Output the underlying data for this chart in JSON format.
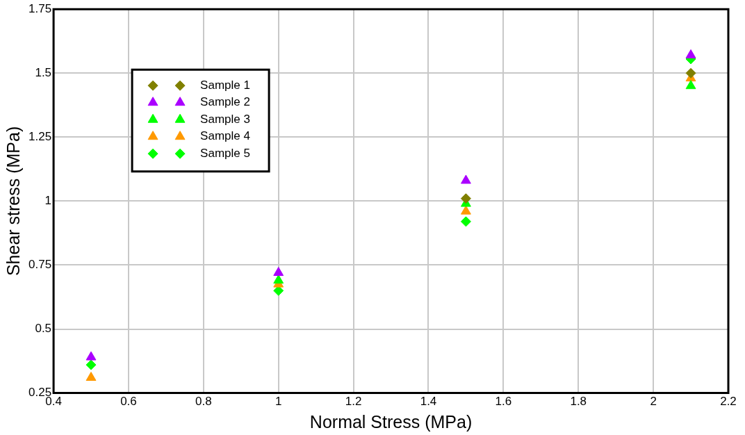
{
  "chart_data": {
    "type": "scatter",
    "xlabel": "Normal Stress (MPa)",
    "ylabel": "Shear stress (MPa)",
    "x": [
      0.5,
      1,
      1.5,
      2.1
    ],
    "series": [
      {
        "name": "Sample 1",
        "color": "#808000",
        "marker": "diamond",
        "values": [
          null,
          null,
          1.01,
          1.5
        ]
      },
      {
        "name": "Sample 2",
        "color": "#aa00ff",
        "marker": "triangle",
        "values": [
          0.39,
          0.72,
          1.08,
          1.57
        ]
      },
      {
        "name": "Sample 3",
        "color": "#00ff00",
        "marker": "triangle",
        "values": [
          null,
          0.69,
          0.99,
          1.45
        ]
      },
      {
        "name": "Sample 4",
        "color": "#ff9900",
        "marker": "triangle",
        "values": [
          0.31,
          0.675,
          0.96,
          1.48
        ]
      },
      {
        "name": "Sample 5",
        "color": "#00ff00",
        "marker": "diamond",
        "values": [
          0.36,
          0.65,
          0.92,
          1.555
        ]
      }
    ],
    "xlim": [
      0.4,
      2.2
    ],
    "xticks": [
      0.4,
      0.6,
      0.8,
      1,
      1.2,
      1.4,
      1.6,
      1.8,
      2,
      2.2
    ],
    "ylim": [
      0.25,
      1.75
    ],
    "yticks": [
      0.25,
      0.5,
      0.75,
      1,
      1.25,
      1.5,
      1.75
    ],
    "grid": true,
    "legend": "top left"
  }
}
